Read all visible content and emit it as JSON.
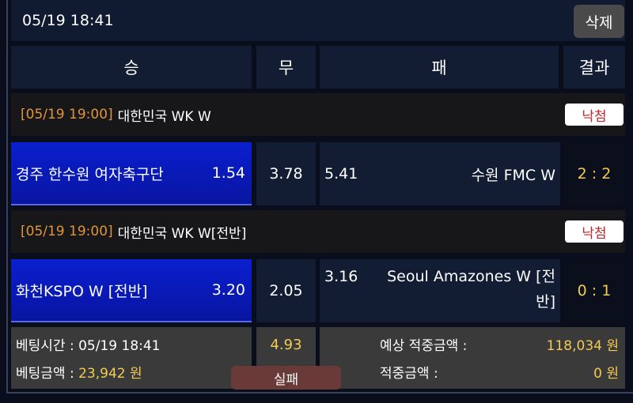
{
  "header": {
    "datetime": "05/19 18:41",
    "delete_label": "삭제"
  },
  "columns": {
    "win": "승",
    "draw": "무",
    "lose": "패",
    "result": "결과"
  },
  "matches": [
    {
      "time": "[05/19 19:00]",
      "league": "대한민국 WK W",
      "status": "낙첨",
      "home": "경주 한수원 여자축구단",
      "home_odds": "1.54",
      "draw_odds": "3.78",
      "away_odds": "5.41",
      "away": "수원 FMC W",
      "score": "2 : 2",
      "selected": "home"
    },
    {
      "time": "[05/19 19:00]",
      "league": "대한민국 WK W[전반]",
      "status": "낙첨",
      "home": "화천KSPO W [전반]",
      "home_odds": "3.20",
      "draw_odds": "2.05",
      "away_odds": "3.16",
      "away": "Seoul Amazones W [전반]",
      "score": "0 : 1",
      "selected": "home"
    }
  ],
  "summary": {
    "bet_time_label": "베팅시간 :",
    "bet_time": "05/19 18:41",
    "bet_amount_label": "베팅금액 :",
    "bet_amount": "23,942 원",
    "total_odds": "4.93",
    "result_label": "실패",
    "expected_label": "예상 적중금액 :",
    "expected": "118,034 원",
    "won_label": "적중금액 :",
    "won": "0 원"
  },
  "colors": {
    "accent": "#f2cb52",
    "selected": "#0a1fcf",
    "lose_badge": "#c0262a"
  }
}
